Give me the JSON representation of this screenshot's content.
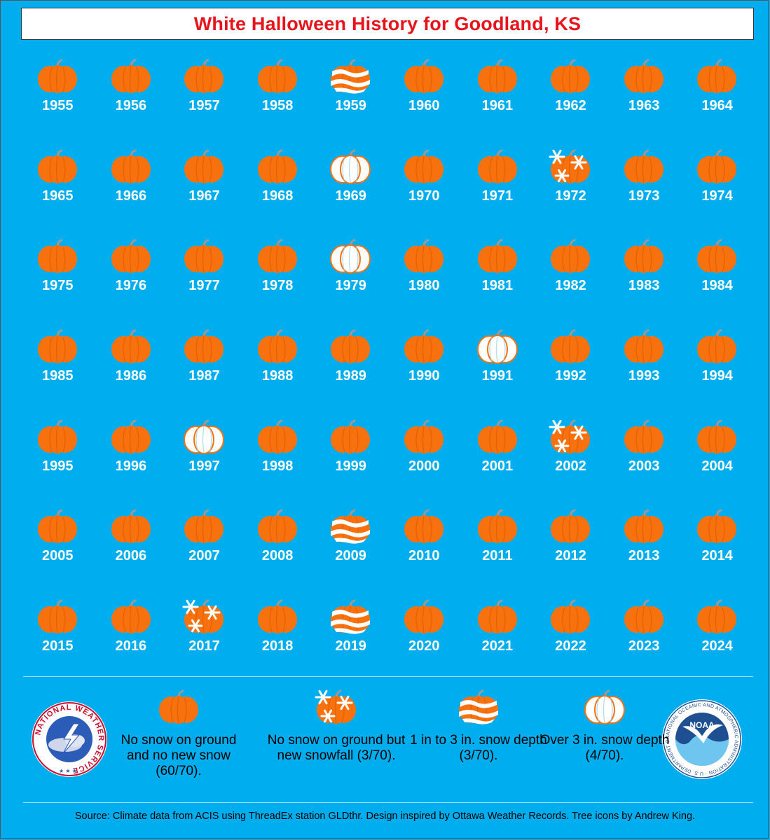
{
  "title": "White Halloween History for Goodland, KS",
  "colors": {
    "background": "#00aeef",
    "title": "#e8141c",
    "pumpkin": "#f7720f",
    "snow": "#ffffff"
  },
  "icon_names": {
    "none": "orange-pumpkin-icon",
    "snowfall": "snowflake-pumpkin-icon",
    "depth_1_3": "striped-snow-pumpkin-icon",
    "depth_over_3": "white-pumpkin-icon"
  },
  "rows": [
    {
      "years": [
        {
          "year": "1955",
          "status": "none"
        },
        {
          "year": "1956",
          "status": "none"
        },
        {
          "year": "1957",
          "status": "none"
        },
        {
          "year": "1958",
          "status": "none"
        },
        {
          "year": "1959",
          "status": "depth_1_3"
        },
        {
          "year": "1960",
          "status": "none"
        },
        {
          "year": "1961",
          "status": "none"
        },
        {
          "year": "1962",
          "status": "none"
        },
        {
          "year": "1963",
          "status": "none"
        },
        {
          "year": "1964",
          "status": "none"
        }
      ]
    },
    {
      "years": [
        {
          "year": "1965",
          "status": "none"
        },
        {
          "year": "1966",
          "status": "none"
        },
        {
          "year": "1967",
          "status": "none"
        },
        {
          "year": "1968",
          "status": "none"
        },
        {
          "year": "1969",
          "status": "depth_over_3"
        },
        {
          "year": "1970",
          "status": "none"
        },
        {
          "year": "1971",
          "status": "none"
        },
        {
          "year": "1972",
          "status": "snowfall"
        },
        {
          "year": "1973",
          "status": "none"
        },
        {
          "year": "1974",
          "status": "none"
        }
      ]
    },
    {
      "years": [
        {
          "year": "1975",
          "status": "none"
        },
        {
          "year": "1976",
          "status": "none"
        },
        {
          "year": "1977",
          "status": "none"
        },
        {
          "year": "1978",
          "status": "none"
        },
        {
          "year": "1979",
          "status": "depth_over_3"
        },
        {
          "year": "1980",
          "status": "none"
        },
        {
          "year": "1981",
          "status": "none"
        },
        {
          "year": "1982",
          "status": "none"
        },
        {
          "year": "1983",
          "status": "none"
        },
        {
          "year": "1984",
          "status": "none"
        }
      ]
    },
    {
      "years": [
        {
          "year": "1985",
          "status": "none"
        },
        {
          "year": "1986",
          "status": "none"
        },
        {
          "year": "1987",
          "status": "none"
        },
        {
          "year": "1988",
          "status": "none"
        },
        {
          "year": "1989",
          "status": "none"
        },
        {
          "year": "1990",
          "status": "none"
        },
        {
          "year": "1991",
          "status": "depth_over_3"
        },
        {
          "year": "1992",
          "status": "none"
        },
        {
          "year": "1993",
          "status": "none"
        },
        {
          "year": "1994",
          "status": "none"
        }
      ]
    },
    {
      "years": [
        {
          "year": "1995",
          "status": "none"
        },
        {
          "year": "1996",
          "status": "none"
        },
        {
          "year": "1997",
          "status": "depth_over_3"
        },
        {
          "year": "1998",
          "status": "none"
        },
        {
          "year": "1999",
          "status": "none"
        },
        {
          "year": "2000",
          "status": "none"
        },
        {
          "year": "2001",
          "status": "none"
        },
        {
          "year": "2002",
          "status": "snowfall"
        },
        {
          "year": "2003",
          "status": "none"
        },
        {
          "year": "2004",
          "status": "none"
        }
      ]
    },
    {
      "years": [
        {
          "year": "2005",
          "status": "none"
        },
        {
          "year": "2006",
          "status": "none"
        },
        {
          "year": "2007",
          "status": "none"
        },
        {
          "year": "2008",
          "status": "none"
        },
        {
          "year": "2009",
          "status": "depth_1_3"
        },
        {
          "year": "2010",
          "status": "none"
        },
        {
          "year": "2011",
          "status": "none"
        },
        {
          "year": "2012",
          "status": "none"
        },
        {
          "year": "2013",
          "status": "none"
        },
        {
          "year": "2014",
          "status": "none"
        }
      ]
    },
    {
      "years": [
        {
          "year": "2015",
          "status": "none"
        },
        {
          "year": "2016",
          "status": "none"
        },
        {
          "year": "2017",
          "status": "snowfall"
        },
        {
          "year": "2018",
          "status": "none"
        },
        {
          "year": "2019",
          "status": "depth_1_3"
        },
        {
          "year": "2020",
          "status": "none"
        },
        {
          "year": "2021",
          "status": "none"
        },
        {
          "year": "2022",
          "status": "none"
        },
        {
          "year": "2023",
          "status": "none"
        },
        {
          "year": "2024",
          "status": "none"
        }
      ]
    }
  ],
  "legend": [
    {
      "status": "none",
      "label": "No snow on ground and no new snow (60/70)."
    },
    {
      "status": "snowfall",
      "label": "No snow on ground but new snowfall (3/70)."
    },
    {
      "status": "depth_1_3",
      "label": "1 in to 3 in. snow depth (3/70)."
    },
    {
      "status": "depth_over_3",
      "label": "Over 3 in. snow depth (4/70)."
    }
  ],
  "logos": {
    "nws": {
      "icon": "nws-logo-icon",
      "text": "NATIONAL WEATHER SERVICE"
    },
    "noaa": {
      "icon": "noaa-logo-icon",
      "text": "NOAA",
      "ring_text": "NATIONAL OCEANIC AND ATMOSPHERIC ADMINISTRATION · U.S. DEPARTMENT OF COMMERCE"
    }
  },
  "source": "Source: Climate data from ACIS using ThreadEx station GLDthr. Design inspired by Ottawa Weather Records. Tree icons by Andrew King."
}
